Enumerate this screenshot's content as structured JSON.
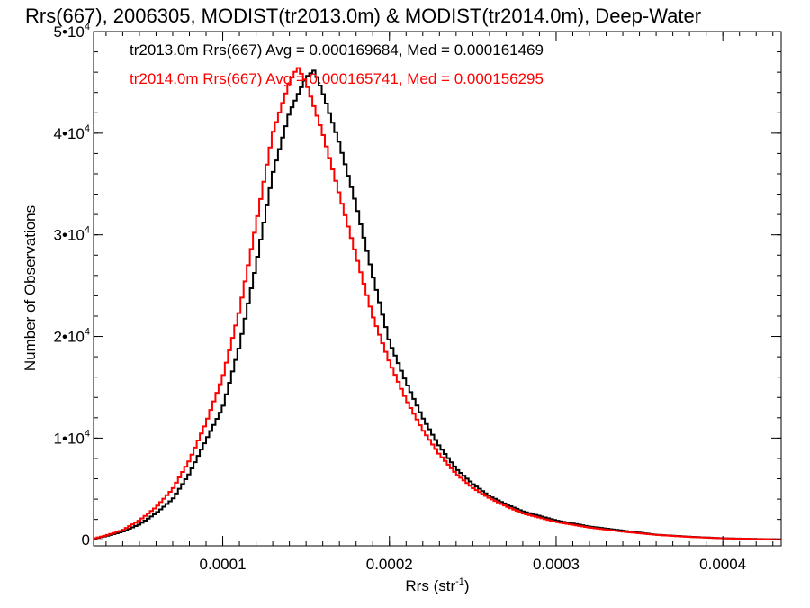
{
  "chart_data": {
    "type": "line",
    "title": "Rrs(667), 2006305, MODIST(tr2013.0m) & MODIST(tr2014.0m), Deep-Water",
    "xlabel": "Rrs (str",
    "xlabel_exp": "-1",
    "xlabel_close": ")",
    "ylabel": "Number of Observations",
    "xlim": [
      2.25e-05,
      0.000435
    ],
    "ylim": [
      -600,
      50000
    ],
    "x_ticks": [
      {
        "value": 0.0001,
        "label": "0.0001"
      },
      {
        "value": 0.0002,
        "label": "0.0002"
      },
      {
        "value": 0.0003,
        "label": "0.0003"
      },
      {
        "value": 0.0004,
        "label": "0.0004"
      }
    ],
    "x_minor_step": 1e-05,
    "y_ticks": [
      {
        "value": 0,
        "label": "0",
        "exp": ""
      },
      {
        "value": 10000,
        "label": "1•10",
        "exp": "4"
      },
      {
        "value": 20000,
        "label": "2•10",
        "exp": "4"
      },
      {
        "value": 30000,
        "label": "3•10",
        "exp": "4"
      },
      {
        "value": 40000,
        "label": "4•10",
        "exp": "4"
      },
      {
        "value": 50000,
        "label": "5•10",
        "exp": "4"
      }
    ],
    "y_minor_step": 2000,
    "legend": [
      {
        "text": "tr2013.0m Rrs(667) Avg = 0.000169684, Med = 0.000161469",
        "color": "#000000"
      },
      {
        "text": "tr2014.0m Rrs(667) Avg = 0.000165741, Med = 0.000156295",
        "color": "#ff0000"
      }
    ],
    "legend_position": "top-left",
    "grid": false,
    "series": [
      {
        "color": "#000000",
        "x": [
          2.25e-05,
          3e-05,
          4e-05,
          5e-05,
          6e-05,
          7e-05,
          8e-05,
          9e-05,
          0.0001,
          0.00011,
          0.00012,
          0.00013,
          0.00014,
          0.00015,
          0.000155,
          0.00016,
          0.00017,
          0.00018,
          0.00019,
          0.0002,
          0.00021,
          0.00022,
          0.00023,
          0.00024,
          0.00025,
          0.00026,
          0.00027,
          0.00028,
          0.0003,
          0.00032,
          0.00034,
          0.00036,
          0.00038,
          0.0004,
          0.00042,
          0.000435
        ],
        "y": [
          100,
          350,
          800,
          1500,
          2600,
          4000,
          6500,
          9800,
          13000,
          19000,
          27000,
          36000,
          42000,
          45500,
          46200,
          44000,
          39000,
          33000,
          26000,
          19500,
          15500,
          12000,
          9200,
          7000,
          5500,
          4300,
          3500,
          2800,
          1900,
          1300,
          900,
          500,
          300,
          150,
          80,
          40
        ]
      },
      {
        "color": "#ff0000",
        "x": [
          2.25e-05,
          3e-05,
          4e-05,
          5e-05,
          6e-05,
          7e-05,
          8e-05,
          9e-05,
          0.0001,
          0.00011,
          0.00012,
          0.00013,
          0.00014,
          0.000145,
          0.00015,
          0.00016,
          0.00017,
          0.00018,
          0.00019,
          0.0002,
          0.00021,
          0.00022,
          0.00023,
          0.00024,
          0.00025,
          0.00026,
          0.00027,
          0.00028,
          0.0003,
          0.00032,
          0.00034,
          0.00036,
          0.00038,
          0.0004,
          0.00042,
          0.000435
        ],
        "y": [
          120,
          420,
          950,
          1900,
          3200,
          5000,
          7800,
          11500,
          16000,
          22500,
          31000,
          40000,
          45000,
          46500,
          45000,
          40000,
          34000,
          28000,
          22000,
          17500,
          13800,
          10800,
          8400,
          6500,
          5100,
          4100,
          3300,
          2600,
          1750,
          1200,
          800,
          480,
          280,
          140,
          70,
          30
        ]
      }
    ]
  }
}
